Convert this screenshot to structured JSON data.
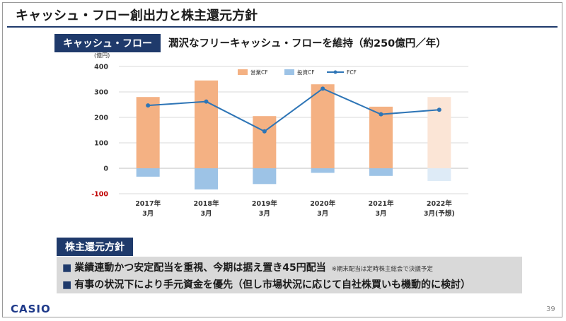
{
  "slide": {
    "title": "キャッシュ・フロー創出力と株主還元方針",
    "cf_tag": "キャッシュ・フロー",
    "cf_subtitle": "潤沢なフリーキャッシュ・フローを維持（約250億円／年）",
    "dividend_tag": "株主還元方針",
    "policy_1": "業績連動かつ安定配当を重視、今期は据え置き45円配当",
    "policy_1_note": "※期末配当は定時株主総会で決議予定",
    "policy_2": "有事の状況下により手元資金を優先（但し市場状況に応じて自社株買いも機動的に検討）",
    "bullet": "■",
    "logo": "CASIO",
    "page_number": "39"
  },
  "colors": {
    "operating": "#f4b183",
    "operating_forecast": "#fbe5d6",
    "investing": "#9dc3e6",
    "investing_forecast": "#deebf7",
    "fcf": "#2e75b6",
    "navy": "#1f3a6b",
    "negative_tick": "#c00000"
  },
  "chart_data": {
    "type": "bar",
    "unit_label": "(億円)",
    "categories": [
      [
        "2017年",
        "3月"
      ],
      [
        "2018年",
        "3月"
      ],
      [
        "2019年",
        "3月"
      ],
      [
        "2020年",
        "3月"
      ],
      [
        "2021年",
        "3月"
      ],
      [
        "2022年",
        "3月(予想)"
      ]
    ],
    "series": [
      {
        "name": "営業CF",
        "kind": "bar",
        "values": [
          280,
          345,
          205,
          330,
          242,
          280
        ]
      },
      {
        "name": "投資CF",
        "kind": "bar",
        "values": [
          -33,
          -83,
          -62,
          -18,
          -30,
          -50
        ]
      },
      {
        "name": "FCF",
        "kind": "line",
        "values": [
          247,
          262,
          145,
          313,
          212,
          230
        ]
      }
    ],
    "forecast_index": 5,
    "yticks": [
      "400",
      "300",
      "200",
      "100",
      "0",
      "-100"
    ],
    "ylim": [
      -100,
      400
    ],
    "grid": true,
    "legend_position": "top"
  }
}
